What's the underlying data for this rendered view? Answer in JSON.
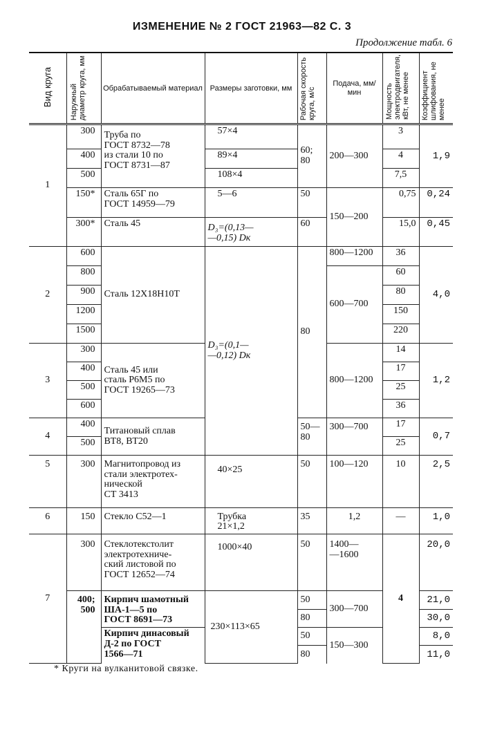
{
  "header": {
    "title": "ИЗМЕНЕНИЕ № 2 ГОСТ 21963—82 С. 3",
    "continuation": "Продолжение табл. 6"
  },
  "table": {
    "columns": [
      "Вид круга",
      "Наружный диаметр круга, мм",
      "Обрабатываемый материал",
      "Размеры заготовки, мм",
      "Рабочая скорость круга, м/с",
      "Подача, мм/мин",
      "Мощность электродвигателя, кВт, не менее",
      "Коэффициент шлифования, не менее"
    ],
    "rows": [
      {
        "vid": "1",
        "diam": "300",
        "material": "Труба по\nГОСТ 8732—78\nиз стали 10 по\nГОСТ 8731—87",
        "size": "57×4",
        "speed": "60;\n80",
        "feed": "200—300",
        "power": "3",
        "coef": "1,9"
      },
      {
        "diam": "400",
        "size": "89×4",
        "power": "4"
      },
      {
        "diam": "500",
        "size": "108×4",
        "power": "7,5"
      },
      {
        "diam": "150*",
        "material": "Сталь 65Г по\nГОСТ 14959—79",
        "size": "5—6",
        "speed": "50",
        "feed": "150—200",
        "power": "0,75",
        "coef": "0,24"
      },
      {
        "diam": "300*",
        "material": "Сталь 45",
        "size": "D₃=(0,13—\n—0,15) Dк",
        "speed": "60",
        "power": "15,0",
        "coef": "0,45"
      },
      {
        "vid": "2",
        "diam": "600",
        "material": "Сталь 12Х18Н10Т",
        "size": "D₃=(0,1—\n—0,12) Dк",
        "speed": "80",
        "feed": "800—1200",
        "power": "36",
        "coef": "4,0"
      },
      {
        "diam": "800",
        "feed": "600—700",
        "power": "60"
      },
      {
        "diam": "900",
        "power": "80"
      },
      {
        "diam": "1200",
        "power": "150"
      },
      {
        "diam": "1500",
        "power": "220"
      },
      {
        "vid": "3",
        "diam": "300",
        "material": "Сталь 45 или\nсталь Р6М5 по\nГОСТ 19265—73",
        "feed": "800—1200",
        "power": "14",
        "coef": "1,2"
      },
      {
        "diam": "400",
        "power": "17"
      },
      {
        "diam": "500",
        "power": "25"
      },
      {
        "diam": "600",
        "power": "36"
      },
      {
        "vid": "4",
        "diam": "400",
        "material": "Титановый сплав\nВТ8, ВТ20",
        "speed": "50—\n80",
        "feed": "300—700",
        "power": "17",
        "coef": "0,7"
      },
      {
        "diam": "500",
        "power": "25"
      },
      {
        "vid": "5",
        "diam": "300",
        "material": "Магнитопровод из\nстали электротех-\nнической\nСТ 3413",
        "size": "40×25",
        "speed": "50",
        "feed": "100—120",
        "power": "10",
        "coef": "2,5"
      },
      {
        "vid": "6",
        "diam": "150",
        "material": "Стекло С52—1",
        "size": "Трубка\n21×1,2",
        "speed": "35",
        "feed": "1,2",
        "power": "—",
        "coef": "1,0"
      },
      {
        "vid": "7",
        "diam": "300",
        "material": "Стеклотекстолит\nэлектротехниче-\nский листовой по\nГОСТ 12652—74",
        "size": "1000×40",
        "speed": "50",
        "feed": "1400—\n—1600",
        "power": "4",
        "coef": "20,0"
      },
      {
        "diam": "400;\n500",
        "material": "Кирпич шамотный\nША-1—5 по\nГОСТ 8691—73",
        "size": "230×113×65",
        "speed": "50",
        "feed": "300—700",
        "coef": "21,0"
      },
      {
        "speed": "80",
        "coef": "30,0"
      },
      {
        "material": "Кирпич динасовый\nД-2 по ГОСТ\n1566—71",
        "speed": "50",
        "feed": "150—300",
        "coef": "8,0"
      },
      {
        "speed": "80",
        "coef": "11,0"
      }
    ]
  },
  "footnote": "* Круги на вулканитовой связке."
}
